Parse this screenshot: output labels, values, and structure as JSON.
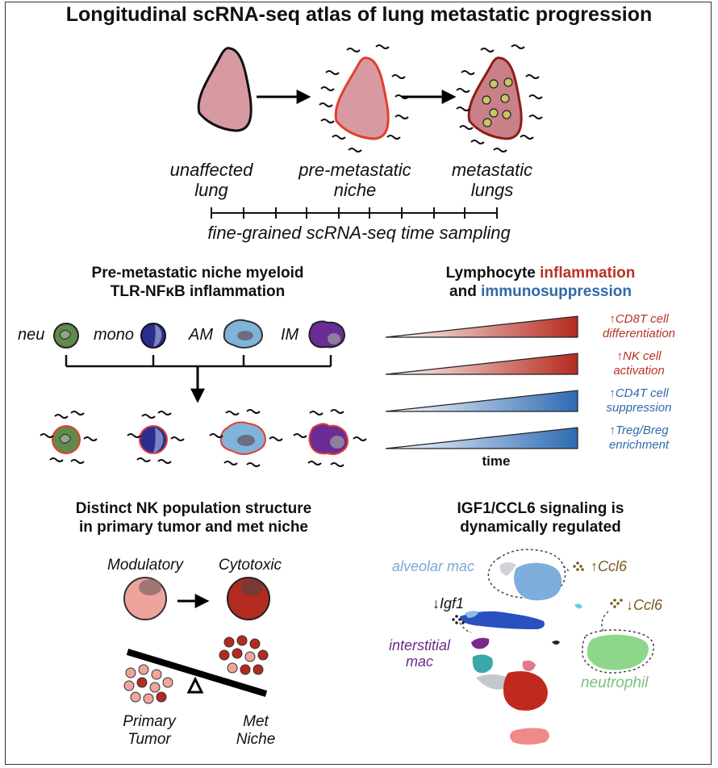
{
  "title": "Longitudinal scRNA-seq atlas of lung metastatic progression",
  "stages": [
    "unaffected\nlung",
    "pre-metastatic\nniche",
    "metastatic\nlungs"
  ],
  "timeline_label": "fine-grained scRNA-seq time sampling",
  "myeloid_panel": {
    "heading_line1": "Pre-metastatic niche myeloid",
    "heading_line2": "TLR-NFκB inflammation",
    "cells": [
      "neu",
      "mono",
      "AM",
      "IM"
    ]
  },
  "lymph_panel": {
    "heading_line1_a": "Lymphocyte ",
    "heading_line1_b": "inflammation",
    "heading_line2_a": "and ",
    "heading_line2_b": "immunosuppression",
    "labels": [
      {
        "l1": "↑CD8T cell",
        "l2": "differentiation"
      },
      {
        "l1": "↑NK cell",
        "l2": "activation"
      },
      {
        "l1": "↑CD4T cell",
        "l2": "suppression"
      },
      {
        "l1": "↑Treg/Breg",
        "l2": "enrichment"
      }
    ],
    "axis_label": "time",
    "colors": {
      "inflammation": "#b83226",
      "immunosuppression": "#2f6aa8"
    }
  },
  "nk_panel": {
    "heading_line1": "Distinct NK population structure",
    "heading_line2": "in primary tumor and met niche",
    "modulatory": "Modulatory",
    "cytotoxic": "Cytotoxic",
    "primary_tumor": "Primary\nTumor",
    "met_niche": "Met\nNiche"
  },
  "signal_panel": {
    "heading_line1": "IGF1/CCL6 signaling is",
    "heading_line2": "dynamically regulated",
    "alveolar_mac": "alveolar mac",
    "interstitial_mac": "interstitial\nmac",
    "neutrophil": "neutrophil",
    "ccl6_up": "↑Ccl6",
    "ccl6_down": "↓Ccl6",
    "igf1_down": "↓Igf1"
  }
}
